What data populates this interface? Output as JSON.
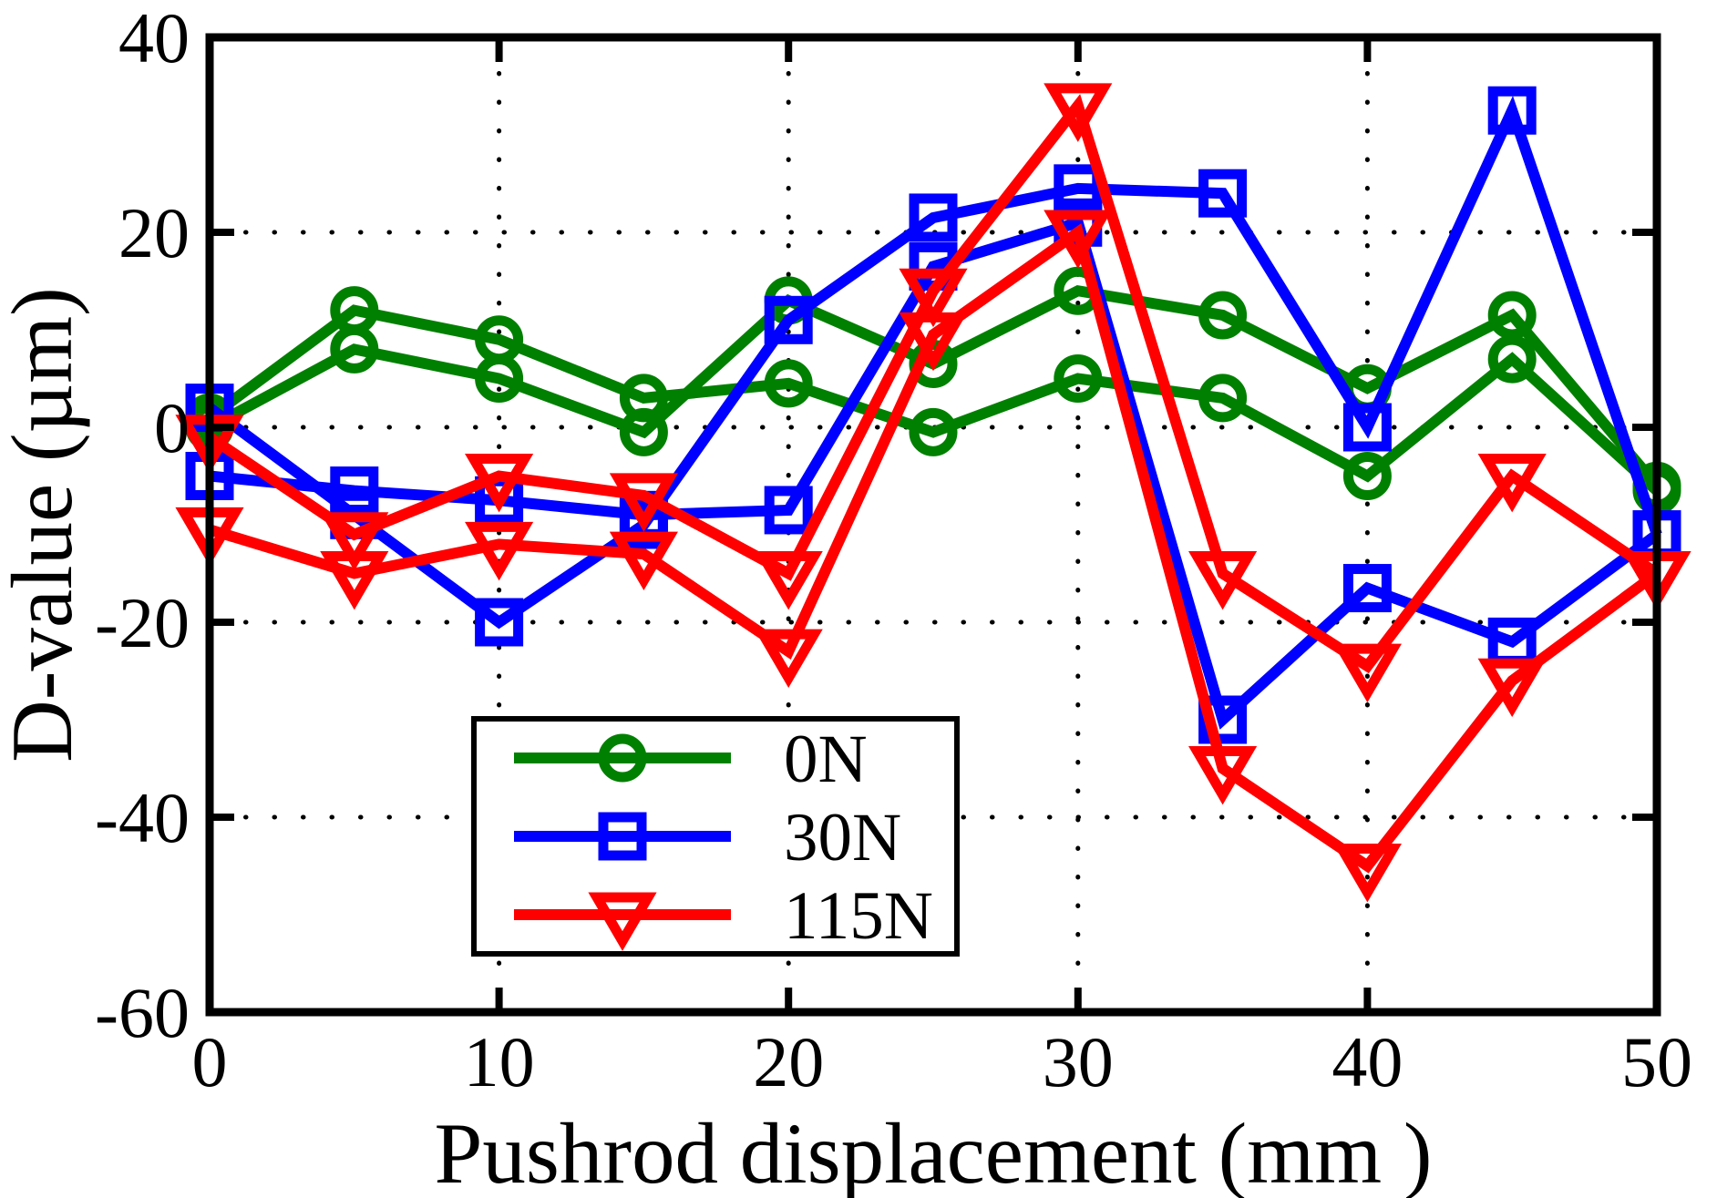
{
  "chart_data": {
    "type": "line",
    "title": "",
    "xlabel": "Pushrod displacement  (mm )",
    "ylabel": "D-value (µm)",
    "x": [
      0,
      5,
      10,
      15,
      20,
      25,
      30,
      35,
      40,
      45,
      50
    ],
    "xlim": [
      0,
      50
    ],
    "ylim": [
      -60,
      40
    ],
    "xticks": [
      0,
      10,
      20,
      30,
      40,
      50
    ],
    "yticks": [
      40,
      20,
      0,
      -20,
      -40,
      -60
    ],
    "grid": "dotted",
    "axis_color": "#000000",
    "legend": {
      "position": "inside-lower-left",
      "entries": [
        {
          "label": "0N",
          "color": "#008000",
          "marker": "circle"
        },
        {
          "label": "30N",
          "color": "#0000ff",
          "marker": "square"
        },
        {
          "label": "115N",
          "color": "#ff0000",
          "marker": "triangle-down"
        }
      ]
    },
    "series": [
      {
        "name": "0N run 1",
        "legend": "0N",
        "color": "#008000",
        "marker": "circle",
        "values": [
          1,
          12,
          9,
          3,
          4.5,
          -0.5,
          5,
          3,
          -5,
          7,
          -6.5
        ]
      },
      {
        "name": "0N run 2",
        "legend": "0N",
        "color": "#008000",
        "marker": "circle",
        "values": [
          0,
          8,
          5,
          -0.5,
          13,
          6.5,
          14,
          11.5,
          4,
          11.5,
          -6
        ]
      },
      {
        "name": "30N run 1",
        "legend": "30N",
        "color": "#0000ff",
        "marker": "square",
        "values": [
          2,
          -9,
          -20,
          -10,
          11,
          21.5,
          24.5,
          24,
          0,
          32.5,
          -11
        ]
      },
      {
        "name": "30N run 2",
        "legend": "30N",
        "color": "#0000ff",
        "marker": "square",
        "values": [
          -5,
          -6.5,
          -7.5,
          -9,
          -8.5,
          16.5,
          21,
          -30,
          -16.5,
          -22,
          -11
        ]
      },
      {
        "name": "115N run 1",
        "legend": "115N",
        "color": "#ff0000",
        "marker": "triangle-down",
        "values": [
          -1,
          -11,
          -5,
          -7,
          -15,
          14,
          33,
          -15,
          -24.5,
          -5,
          -15
        ]
      },
      {
        "name": "115N run 2",
        "legend": "115N",
        "color": "#ff0000",
        "marker": "triangle-down",
        "values": [
          -10.5,
          -15,
          -12,
          -13,
          -23,
          9.5,
          20,
          -35,
          -45,
          -26,
          -15
        ]
      }
    ]
  }
}
